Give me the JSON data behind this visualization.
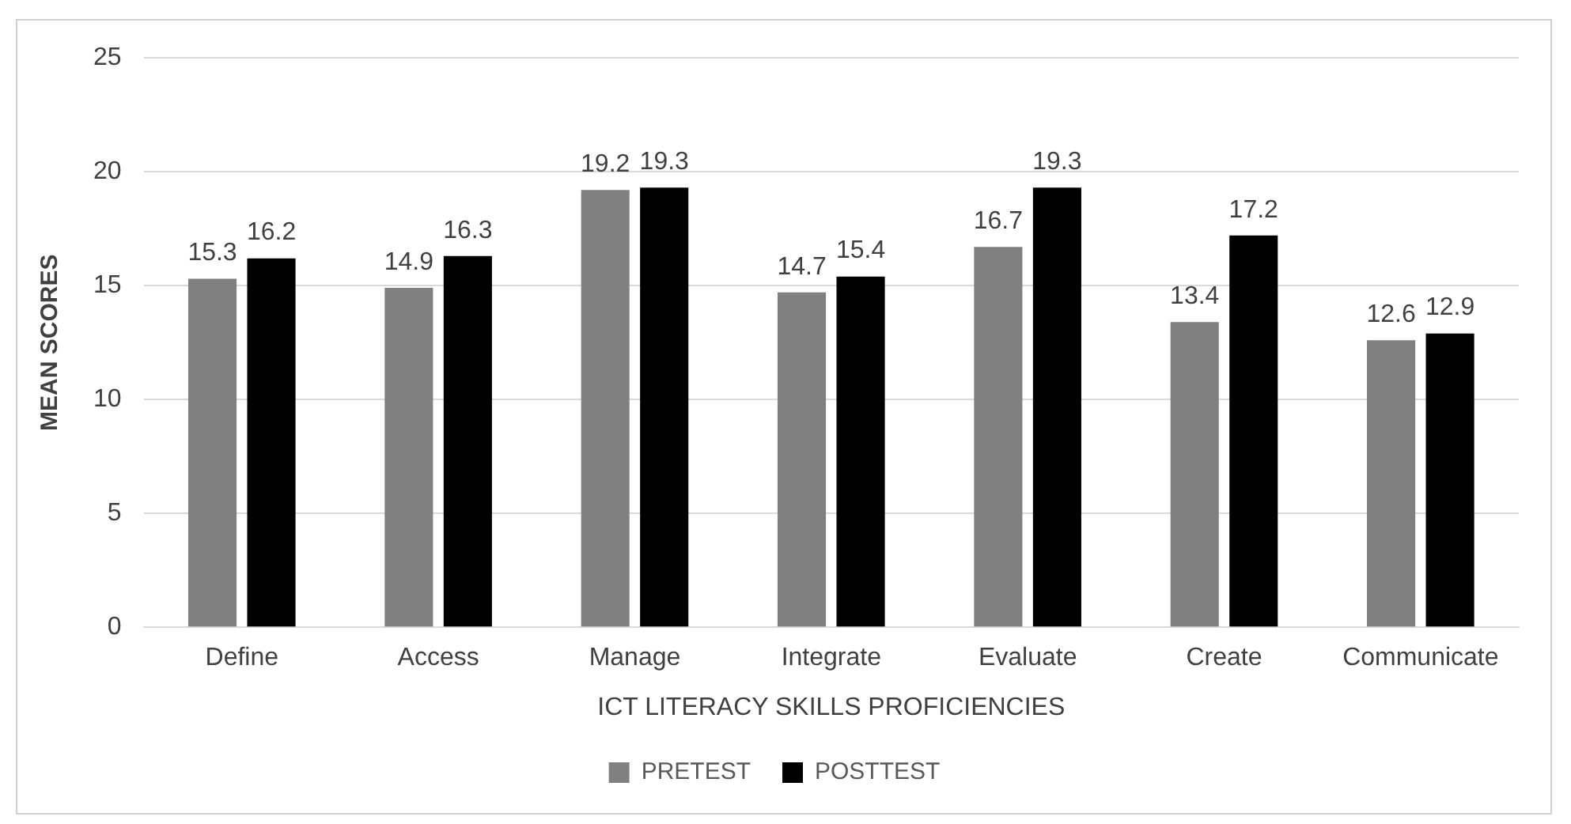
{
  "chart_data": {
    "type": "bar",
    "xlabel": "ICT LITERACY SKILLS PROFICIENCIES",
    "ylabel": "MEAN SCORES",
    "categories": [
      "Define",
      "Access",
      "Manage",
      "Integrate",
      "Evaluate",
      "Create",
      "Communicate"
    ],
    "series": [
      {
        "name": "PRETEST",
        "color": "#808080",
        "values": [
          15.3,
          14.9,
          19.2,
          14.7,
          16.7,
          13.4,
          12.6
        ]
      },
      {
        "name": "POSTTEST",
        "color": "#000000",
        "values": [
          16.2,
          16.3,
          19.3,
          15.4,
          19.3,
          17.2,
          12.9
        ]
      }
    ],
    "ylim": [
      0,
      25
    ],
    "yticks": [
      0,
      5,
      10,
      15,
      20,
      25
    ],
    "grid": "y",
    "legend": "bottom",
    "data_labels": true
  }
}
